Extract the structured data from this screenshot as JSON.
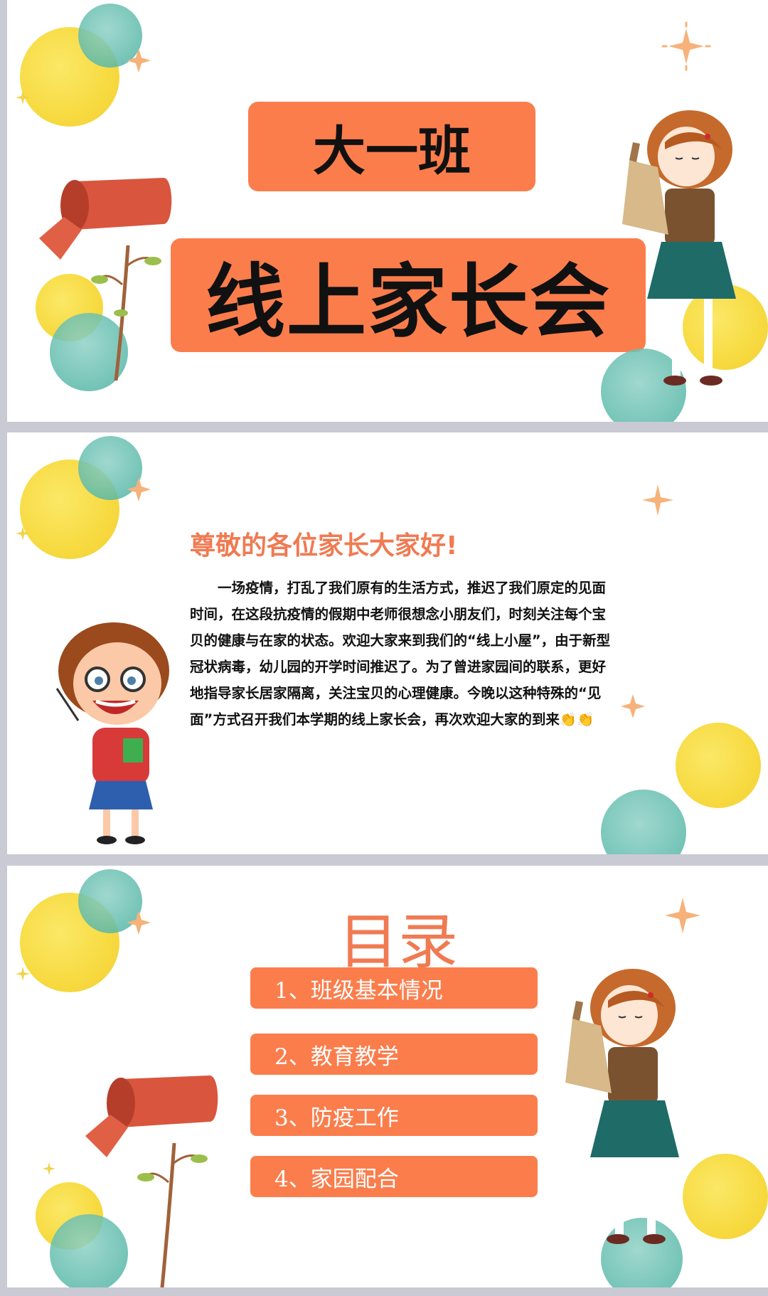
{
  "slides": [
    {
      "class_name": "大一班",
      "meeting_title": "线上家长会"
    },
    {
      "greeting": "尊敬的各位家长大家好!",
      "paragraph": "一场疫情，打乱了我们原有的生活方式，推迟了我们原定的见面时间，在这段抗疫情的假期中老师很想念小朋友们，时刻关注每个宝贝的健康与在家的状态。欢迎大家来到我们的“线上小屋”，由于新型冠状病毒，幼儿园的开学时间推迟了。为了曾进家园间的联系，更好地指导家长居家隔离，关注宝贝的心理健康。今晚以这种特殊的“见面”方式召开我们本学期的线上家长会，再次欢迎大家的到来👏👏"
    },
    {
      "toc_title": "目录",
      "items": [
        "1、班级基本情况",
        "2、教育教学",
        "3、防疫工作",
        "4、家园配合"
      ]
    }
  ],
  "colors": {
    "orange": "#fb7d4c",
    "heading_orange": "#f07a52",
    "yellow_blob": "#f6d730",
    "teal_blob": "#5cb9aa",
    "page_gap": "#c9cad3"
  },
  "icons": [
    "sparkle-icon",
    "mailbox-illustration",
    "girl-illustration",
    "teacher-illustration",
    "clap-emoji"
  ]
}
